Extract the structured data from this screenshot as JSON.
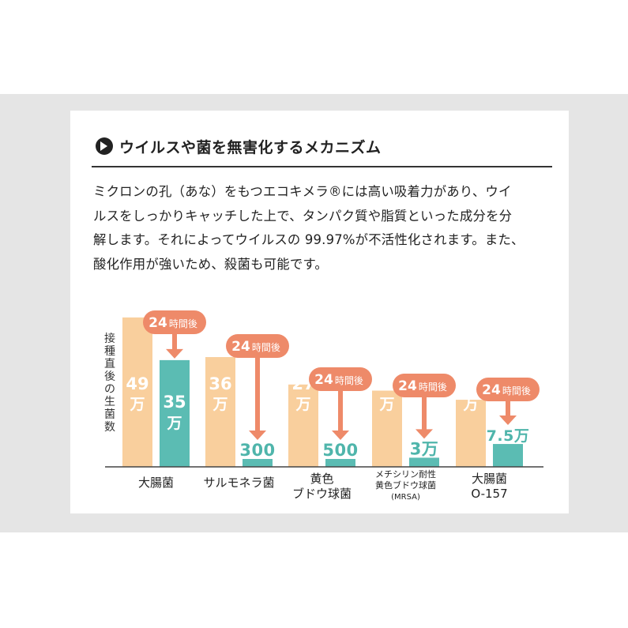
{
  "heading": {
    "icon": "arrow-right-circle-icon",
    "title": "ウイルスや菌を無害化するメカニズム"
  },
  "description": {
    "lines": [
      "ミクロンの孔（あな）をもつエコキメラ®には高い吸着力があり、ウイ",
      "ルスをしっかりキャッチした上で、タンパク質や脂質といった成分を分",
      "解します。それによってウイルスの 99.97%が不活性化されます。また、",
      "酸化作用が強いため、殺菌も可能です。"
    ]
  },
  "chart_data": {
    "type": "bar",
    "ylabel": "接種直後の生菌数",
    "categories": [
      {
        "lines": [
          "大腸菌"
        ],
        "small": false
      },
      {
        "lines": [
          "サルモネラ菌"
        ],
        "small": false
      },
      {
        "lines": [
          "黄色",
          "ブドウ球菌"
        ],
        "small": false
      },
      {
        "lines": [
          "メチシリン耐性",
          "黄色ブドウ球菌",
          "(MRSA)"
        ],
        "small": true
      },
      {
        "lines": [
          "大腸菌",
          "O-157"
        ],
        "small": false
      }
    ],
    "series": [
      {
        "values": [
          490000,
          360000,
          270000,
          250000,
          220000
        ],
        "labels": [
          "49万",
          "36万",
          "27万",
          "25万",
          "22万"
        ],
        "label_style": "vertical",
        "color": "#f9cf9d"
      },
      {
        "values": [
          350000,
          300,
          500,
          30000,
          75000
        ],
        "labels": [
          "35万",
          "300",
          "500",
          "3万",
          "7.5万"
        ],
        "label_style": "mixed",
        "color": "#5bbcb3"
      }
    ],
    "callout": {
      "number": "24",
      "unit": "時間後",
      "color": "#ee8a69"
    },
    "colors": {
      "before": "#f9cf9d",
      "after": "#5bbcb3",
      "callout": "#ee8a69",
      "label_light": "#ffffff",
      "label_teal": "#4fb5ab"
    },
    "ylim": [
      0,
      500000
    ]
  }
}
